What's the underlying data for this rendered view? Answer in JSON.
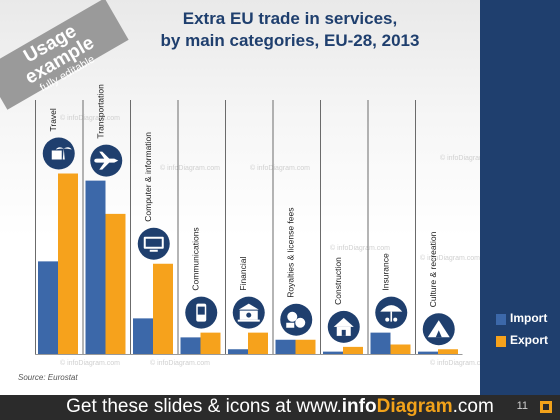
{
  "ribbon": {
    "line1": "Usage",
    "line2": "example",
    "line3": "fully editable"
  },
  "title_line1": "Extra EU trade in services,",
  "title_line2": "by main categories, EU-28, 2013",
  "source": "Source: Eurostat",
  "footer": {
    "prefix": "Get these slides & icons at www.",
    "brand_bold": "info",
    "brand_orange": "Diagram",
    "suffix": ".com",
    "page": "11"
  },
  "watermark": "© infoDiagram.com",
  "colors": {
    "import": "#3c68a9",
    "export": "#f6a21c",
    "icon_circle": "#1f3f6e",
    "panel": "#1f3f6e"
  },
  "chart_data": {
    "type": "bar",
    "title": "Extra EU trade in services, by main categories, EU-28, 2013",
    "categories": [
      "Travel",
      "Transportation",
      "Computer & information",
      "Communications",
      "Financial",
      "Royalties & license fees",
      "Construction",
      "Insurance",
      "Culture & recreation"
    ],
    "icons": [
      "hotel-icon",
      "airplane-icon",
      "computer-icon",
      "phone-icon",
      "bank-icon",
      "money-icon",
      "house-icon",
      "umbrella-icon",
      "tent-icon"
    ],
    "series": [
      {
        "name": "Import",
        "values": [
          39,
          73,
          15,
          7,
          2,
          6,
          1,
          9,
          1
        ]
      },
      {
        "name": "Export",
        "values": [
          76,
          59,
          38,
          9,
          9,
          6,
          3,
          4,
          2
        ]
      }
    ],
    "ylim": [
      0,
      80
    ],
    "legend": "right",
    "grid": false
  }
}
